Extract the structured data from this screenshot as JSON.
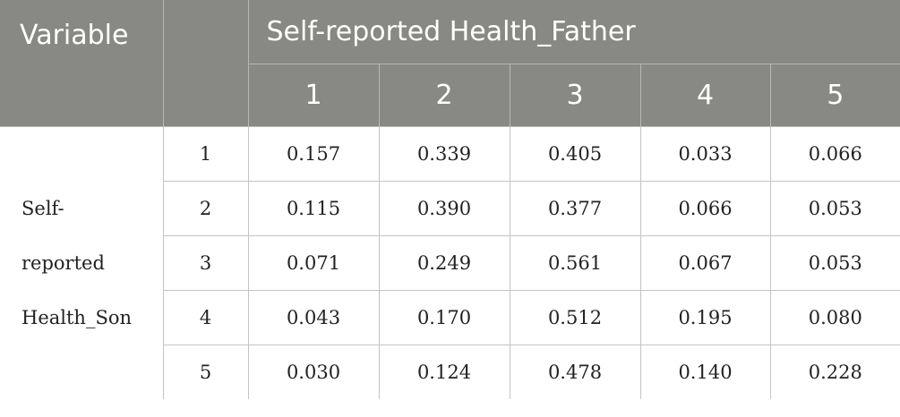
{
  "header": {
    "variable_label": "Variable",
    "group_label": "Self-reported Health_Father",
    "columns": [
      "1",
      "2",
      "3",
      "4",
      "5"
    ]
  },
  "row_group": {
    "label_lines": [
      "Self-",
      "reported",
      "Health_Son"
    ]
  },
  "rows": [
    {
      "label": "1",
      "values": [
        "0.157",
        "0.339",
        "0.405",
        "0.033",
        "0.066"
      ]
    },
    {
      "label": "2",
      "values": [
        "0.115",
        "0.390",
        "0.377",
        "0.066",
        "0.053"
      ]
    },
    {
      "label": "3",
      "values": [
        "0.071",
        "0.249",
        "0.561",
        "0.067",
        "0.053"
      ]
    },
    {
      "label": "4",
      "values": [
        "0.043",
        "0.170",
        "0.512",
        "0.195",
        "0.080"
      ]
    },
    {
      "label": "5",
      "values": [
        "0.030",
        "0.124",
        "0.478",
        "0.140",
        "0.228"
      ]
    }
  ]
}
